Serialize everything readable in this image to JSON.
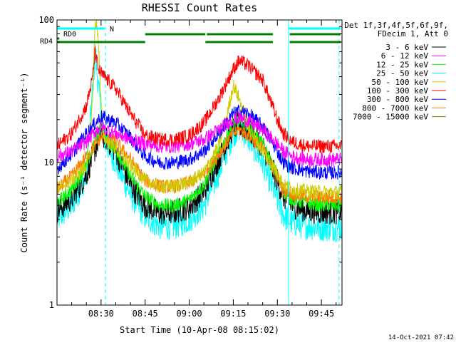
{
  "chart_data": {
    "type": "line",
    "title": "RHESSI Count Rates",
    "xlabel": "Start Time (10-Apr-08 08:15:02)",
    "ylabel": "Count Rate (s⁻¹ detector segment⁻¹)",
    "x_unit": "minutes after 08:15:02",
    "xlim": [
      0,
      97
    ],
    "ylim": [
      1,
      100
    ],
    "y_scale": "log",
    "x_ticks": [
      {
        "x": 15,
        "label": "08:30"
      },
      {
        "x": 30,
        "label": "08:45"
      },
      {
        "x": 45,
        "label": "09:00"
      },
      {
        "x": 60,
        "label": "09:15"
      },
      {
        "x": 75,
        "label": "09:30"
      },
      {
        "x": 90,
        "label": "09:45"
      }
    ],
    "y_ticks": [
      {
        "y": 1,
        "label": "1"
      },
      {
        "y": 10,
        "label": "10"
      },
      {
        "y": 100,
        "label": "100"
      }
    ],
    "legend_header": [
      "Det 1f,3f,4f,5f,6f,9f,",
      "FDecim 1, Att 0"
    ],
    "legend_placement": "right",
    "timestamp": "14-Oct-2021 07:42",
    "vlines": [
      {
        "x": 16.5,
        "style": "dashed",
        "color": "#00ffff"
      },
      {
        "x": 78.8,
        "style": "solid",
        "color": "#00ffff"
      },
      {
        "x": 96.0,
        "style": "dashed",
        "color": "#00ffff"
      }
    ],
    "flag_bars": [
      {
        "label": "N",
        "color": "#00ffff",
        "segments": [
          [
            0,
            16.2
          ],
          [
            78.8,
            96.5
          ]
        ]
      },
      {
        "label": "",
        "color": "#008000",
        "segments": [
          [
            30.0,
            50.5
          ],
          [
            51.0,
            73.5
          ],
          [
            79.2,
            96.5
          ]
        ]
      },
      {
        "label": "RD0",
        "color": "#008000",
        "segments": [
          [
            0,
            0.8
          ]
        ]
      },
      {
        "label": "RD4",
        "color": "#008000",
        "segments": [
          [
            0,
            30.0
          ],
          [
            50.5,
            73.5
          ],
          [
            79.2,
            96.5
          ]
        ]
      }
    ],
    "series": [
      {
        "name": "3 - 6 keV",
        "color": "#000000",
        "x": [
          0,
          5,
          10,
          13,
          15,
          17,
          20,
          25,
          30,
          35,
          40,
          45,
          50,
          55,
          60,
          62,
          65,
          70,
          75,
          77,
          80,
          85,
          90,
          95,
          97
        ],
        "values": [
          4.6,
          5.6,
          8.2,
          12.5,
          16,
          14.5,
          12,
          7.0,
          5.0,
          4.4,
          4.5,
          4.9,
          6.2,
          10.5,
          17.5,
          18.5,
          17.0,
          13.0,
          7.5,
          5.8,
          5.0,
          4.6,
          4.5,
          4.5,
          4.5
        ]
      },
      {
        "name": "6 - 12 keV",
        "color": "#ff00ff",
        "x": [
          0,
          5,
          10,
          13,
          15,
          17,
          20,
          25,
          30,
          35,
          40,
          45,
          50,
          55,
          60,
          62,
          65,
          70,
          75,
          77,
          80,
          85,
          90,
          95,
          97
        ],
        "values": [
          11,
          12,
          14,
          16.5,
          18,
          17,
          16,
          14.5,
          13.5,
          13,
          13,
          13.5,
          14.5,
          17,
          20,
          20.5,
          19.5,
          17,
          13.5,
          12,
          11,
          10.5,
          10.5,
          10.5,
          10.5
        ]
      },
      {
        "name": "12 - 25 keV",
        "color": "#00ff00",
        "x": [
          0,
          5,
          10,
          13,
          15,
          17,
          20,
          25,
          30,
          35,
          40,
          45,
          50,
          55,
          60,
          62,
          65,
          70,
          75,
          77,
          80,
          85,
          90,
          95,
          97
        ],
        "values": [
          5.2,
          6.5,
          9.5,
          14,
          19,
          14.5,
          12.5,
          8.0,
          5.8,
          5.0,
          5.0,
          5.5,
          7.0,
          11.5,
          19,
          20,
          18,
          13.5,
          8.0,
          6.3,
          5.5,
          5.2,
          5.0,
          5.0,
          5.0
        ]
      },
      {
        "name": "25 - 50 keV",
        "color": "#00ffff",
        "x": [
          0,
          5,
          10,
          12,
          13,
          14,
          16,
          20,
          25,
          30,
          35,
          40,
          45,
          50,
          55,
          60,
          62,
          65,
          70,
          75,
          77,
          80,
          85,
          90,
          95,
          97
        ],
        "values": [
          4.0,
          5.0,
          8.0,
          30,
          60,
          35,
          15,
          10,
          6.0,
          4.2,
          3.6,
          3.6,
          4.0,
          5.0,
          8.5,
          16,
          17.5,
          15,
          10,
          5.5,
          4.3,
          3.8,
          3.6,
          3.5,
          3.5,
          3.5
        ]
      },
      {
        "name": "50 - 100 keV",
        "color": "#cccc00",
        "x": [
          0,
          5,
          10,
          12,
          13,
          14,
          15,
          16,
          20,
          25,
          30,
          35,
          40,
          45,
          50,
          55,
          58,
          60,
          62,
          65,
          70,
          75,
          77,
          80,
          85,
          90,
          95,
          97
        ],
        "values": [
          6.5,
          7.5,
          9.5,
          25,
          100,
          80,
          25,
          15,
          12.5,
          9.5,
          7.5,
          6.8,
          6.8,
          7.3,
          8.5,
          13,
          22,
          35,
          28,
          18,
          12,
          8.5,
          7.0,
          6.5,
          6.3,
          6.2,
          6.2,
          6.2
        ]
      },
      {
        "name": "100 - 300 keV",
        "color": "#ff0000",
        "x": [
          0,
          5,
          10,
          12,
          13,
          14,
          16,
          20,
          25,
          30,
          35,
          40,
          45,
          50,
          55,
          60,
          62,
          65,
          70,
          75,
          77,
          80,
          85,
          90,
          95,
          97
        ],
        "values": [
          13,
          16,
          25,
          38,
          60,
          45,
          40,
          33,
          22,
          15.5,
          14.5,
          14.5,
          15.5,
          19,
          28,
          45,
          52,
          48,
          38,
          20,
          16,
          14,
          13,
          13,
          13,
          13
        ]
      },
      {
        "name": "300 - 800 keV",
        "color": "#0000ff",
        "x": [
          0,
          5,
          10,
          15,
          20,
          25,
          30,
          35,
          40,
          45,
          50,
          55,
          60,
          62,
          65,
          70,
          75,
          77,
          80,
          85,
          90,
          95,
          97
        ],
        "values": [
          9.0,
          11.5,
          16,
          21,
          19,
          15,
          11,
          10,
          10,
          10.5,
          12,
          16,
          22,
          23,
          22,
          18,
          12,
          10,
          9.2,
          8.7,
          8.5,
          8.5,
          8.5
        ]
      },
      {
        "name": "800 - 7000 keV",
        "color": "#ff7f00",
        "x": [
          0,
          5,
          10,
          15,
          20,
          25,
          30,
          35,
          40,
          45,
          50,
          55,
          60,
          62,
          65,
          70,
          75,
          77,
          80,
          85,
          90,
          95,
          97
        ],
        "values": [
          6.5,
          8.0,
          11,
          15,
          14,
          10.5,
          7.5,
          6.8,
          6.8,
          7.2,
          8.3,
          11.5,
          16,
          17,
          15.5,
          12.5,
          8.0,
          6.5,
          6.0,
          5.8,
          5.7,
          5.7,
          5.7
        ]
      },
      {
        "name": "7000 - 15000 keV",
        "color": "#808000",
        "x": [],
        "values": []
      }
    ]
  }
}
